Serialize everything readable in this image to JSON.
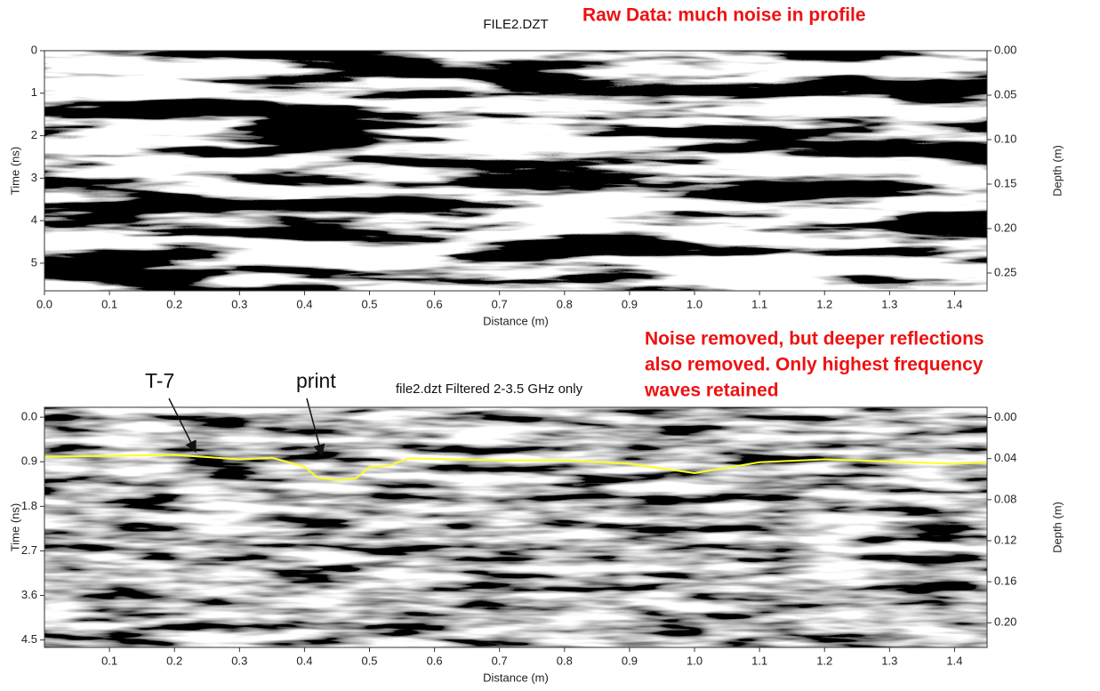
{
  "chart_data": [
    {
      "type": "radargram",
      "title": "FILE2.DZT",
      "annotations": [
        "Raw Data:  much noise in profile"
      ],
      "xlabel": "Distance (m)",
      "ylabel": "Time (ns)",
      "y2label": "Depth (m)",
      "xlim": [
        0,
        1.45
      ],
      "xticks": [
        {
          "value": 0,
          "label": "0.0"
        },
        0.1,
        0.2,
        0.3,
        0.4,
        0.5,
        0.6,
        0.7,
        0.8,
        0.9,
        {
          "value": 1,
          "label": "1.0"
        },
        1.1,
        1.2,
        1.3,
        1.4
      ],
      "ylim": [
        0,
        5.65
      ],
      "yticks": [
        0,
        1,
        2,
        3,
        4,
        5
      ],
      "y2lim": [
        0,
        0.27
      ],
      "y2ticks": [
        {
          "value": 0,
          "label": "0.00"
        },
        {
          "value": 0.05,
          "label": "0.05"
        },
        {
          "value": 0.1,
          "label": "0.10"
        },
        {
          "value": 0.15,
          "label": "0.15"
        },
        {
          "value": 0.2,
          "label": "0.20"
        },
        {
          "value": 0.25,
          "label": "0.25"
        }
      ],
      "y_inverted": true
    },
    {
      "type": "radargram",
      "title": "file2.dzt Filtered 2-3.5 GHz only",
      "annotations": [
        "Noise removed, but deeper reflections",
        "also removed.  Only highest frequency",
        "waves retained",
        "T-7",
        "print"
      ],
      "xlabel": "Distance (m)",
      "ylabel": "Time (ns)",
      "y2label": "Depth (m)",
      "xlim": [
        0,
        1.45
      ],
      "xticks": [
        0.1,
        0.2,
        0.3,
        0.4,
        0.5,
        0.6,
        0.7,
        0.8,
        0.9,
        {
          "value": 1,
          "label": "1.0"
        },
        1.1,
        1.2,
        1.3,
        1.4
      ],
      "ylim": [
        -0.2,
        4.65
      ],
      "yticks": [
        {
          "value": 0,
          "label": "0.0"
        },
        0.9,
        1.8,
        2.7,
        3.6,
        4.5
      ],
      "y2lim": [
        -0.01,
        0.224
      ],
      "y2ticks": [
        {
          "value": 0,
          "label": "0.00"
        },
        0.04,
        0.08,
        0.12,
        0.16,
        {
          "value": 0.2,
          "label": "0.20"
        }
      ],
      "y_inverted": true,
      "series": [
        {
          "color": "#ffff22",
          "x": [
            0,
            0.2,
            0.3,
            0.35,
            0.4,
            0.42,
            0.45,
            0.48,
            0.5,
            0.53,
            0.56,
            0.7,
            0.8,
            0.9,
            1.0,
            1.1,
            1.2,
            1.4,
            1.45
          ],
          "values": [
            0.8,
            0.76,
            0.85,
            0.82,
            1.0,
            1.22,
            1.27,
            1.23,
            1.0,
            0.98,
            0.83,
            0.87,
            0.87,
            0.94,
            1.13,
            0.91,
            0.85,
            0.94,
            0.91
          ]
        }
      ]
    }
  ]
}
